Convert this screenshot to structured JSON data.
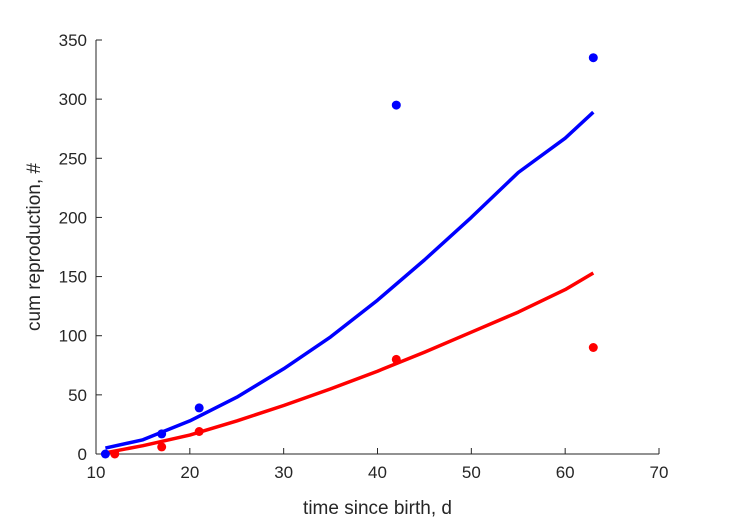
{
  "chart_data": {
    "type": "scatter",
    "xlabel": "time since birth, d",
    "ylabel": "cum reproduction, #",
    "xlim": [
      10,
      70
    ],
    "ylim": [
      0,
      350
    ],
    "xticks": [
      10,
      20,
      30,
      40,
      50,
      60,
      70
    ],
    "yticks": [
      0,
      50,
      100,
      150,
      200,
      250,
      300,
      350
    ],
    "grid": false,
    "legend": "none",
    "series": [
      {
        "color": "#0000ff",
        "points": {
          "x": [
            11,
            17,
            21,
            42,
            63
          ],
          "y": [
            0,
            17,
            39,
            295,
            335
          ]
        },
        "fit_line": {
          "x": [
            11,
            15,
            20,
            25,
            30,
            35,
            40,
            45,
            50,
            55,
            60,
            63
          ],
          "y": [
            5,
            12,
            28,
            48,
            72,
            99,
            130,
            164,
            200,
            238,
            267,
            289
          ]
        }
      },
      {
        "color": "#ff0000",
        "points": {
          "x": [
            12,
            17,
            21,
            42,
            63
          ],
          "y": [
            0,
            6,
            19,
            80,
            90
          ]
        },
        "fit_line": {
          "x": [
            11,
            15,
            20,
            25,
            30,
            35,
            40,
            45,
            50,
            55,
            60,
            63
          ],
          "y": [
            1,
            7,
            16,
            28,
            41,
            55,
            70,
            86,
            103,
            120,
            139,
            153
          ]
        }
      }
    ]
  }
}
